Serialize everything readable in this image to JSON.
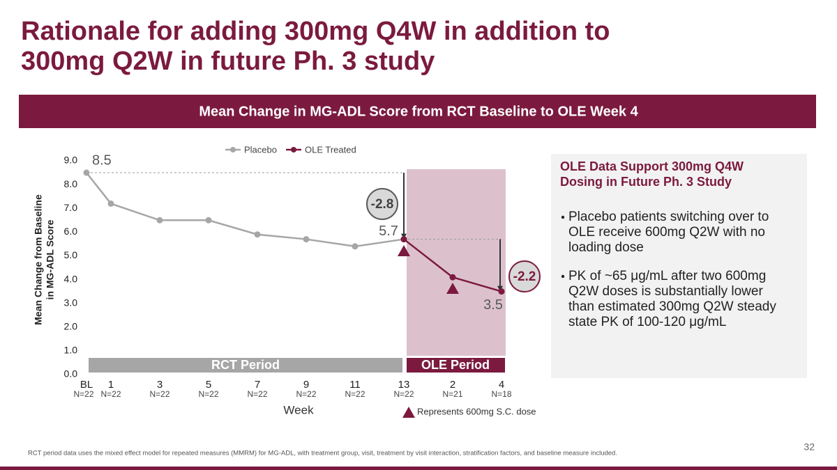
{
  "title": [
    "Rationale for adding 300mg Q4W in addition to",
    "300mg Q2W in future Ph. 3 study"
  ],
  "banner": "Mean Change in MG-ADL Score from RCT Baseline to OLE Week 4",
  "chart_data": {
    "type": "line",
    "categories": [
      "BL",
      "1",
      "3",
      "5",
      "7",
      "9",
      "11",
      "13",
      "2",
      "4"
    ],
    "n_labels": [
      "N=22",
      "N=22",
      "N=22",
      "N=22",
      "N=22",
      "N=22",
      "N=22",
      "N=22",
      "N=21",
      "N=18"
    ],
    "x_label": "Week",
    "y_label": [
      "Mean Change from Baseline",
      "in MG-ADL Score"
    ],
    "ylim": [
      0,
      9
    ],
    "yticks": [
      {
        "value": 0,
        "label": "0.0"
      },
      {
        "value": 1,
        "label": "1.0"
      },
      {
        "value": 2,
        "label": "2.0"
      },
      {
        "value": 3,
        "label": "3.0"
      },
      {
        "value": 4,
        "label": "4.0"
      },
      {
        "value": 5,
        "label": "5.0"
      },
      {
        "value": 6,
        "label": "6.0"
      },
      {
        "value": 7,
        "label": "7.0"
      },
      {
        "value": 8,
        "label": "8.0"
      },
      {
        "value": 9,
        "label": "9.0"
      }
    ],
    "series": [
      {
        "name": "Placebo",
        "color": "#a6a6a6",
        "values": [
          8.5,
          7.2,
          6.5,
          6.5,
          5.9,
          5.7,
          5.4,
          5.7,
          null,
          null
        ],
        "value_labels": [
          "8.5",
          null,
          null,
          null,
          null,
          null,
          null,
          null,
          null,
          null
        ]
      },
      {
        "name": "OLE Treated",
        "color": "#7b1a3e",
        "values": [
          null,
          null,
          null,
          null,
          null,
          null,
          null,
          5.7,
          4.1,
          3.5
        ],
        "value_labels": [
          null,
          null,
          null,
          null,
          null,
          null,
          null,
          "5.7",
          null,
          "3.5"
        ]
      }
    ],
    "legend": "top",
    "change_annotations": [
      "-2.8",
      "-2.2"
    ],
    "periods": [
      "RCT Period",
      "OLE Period"
    ],
    "dose_legend": "Represents 600mg S.C. dose"
  },
  "side_box": {
    "heading": [
      "OLE Data Support 300mg Q4W",
      "Dosing in Future Ph. 3 Study"
    ],
    "bullets": [
      [
        "Placebo patients switching over to",
        "OLE receive 600mg Q2W with no",
        "loading dose"
      ],
      [
        "PK of ~65 μg/mL after two 600mg",
        "Q2W doses is substantially lower",
        "than estimated 300mg Q2W steady",
        "state PK of 100-120 μg/mL"
      ]
    ]
  },
  "footnote": "RCT period data uses the mixed effect model for repeated measures (MMRM) for MG-ADL, with treatment group, visit, treatment by visit interaction, stratification factors, and baseline measure included.",
  "page_number": "32"
}
